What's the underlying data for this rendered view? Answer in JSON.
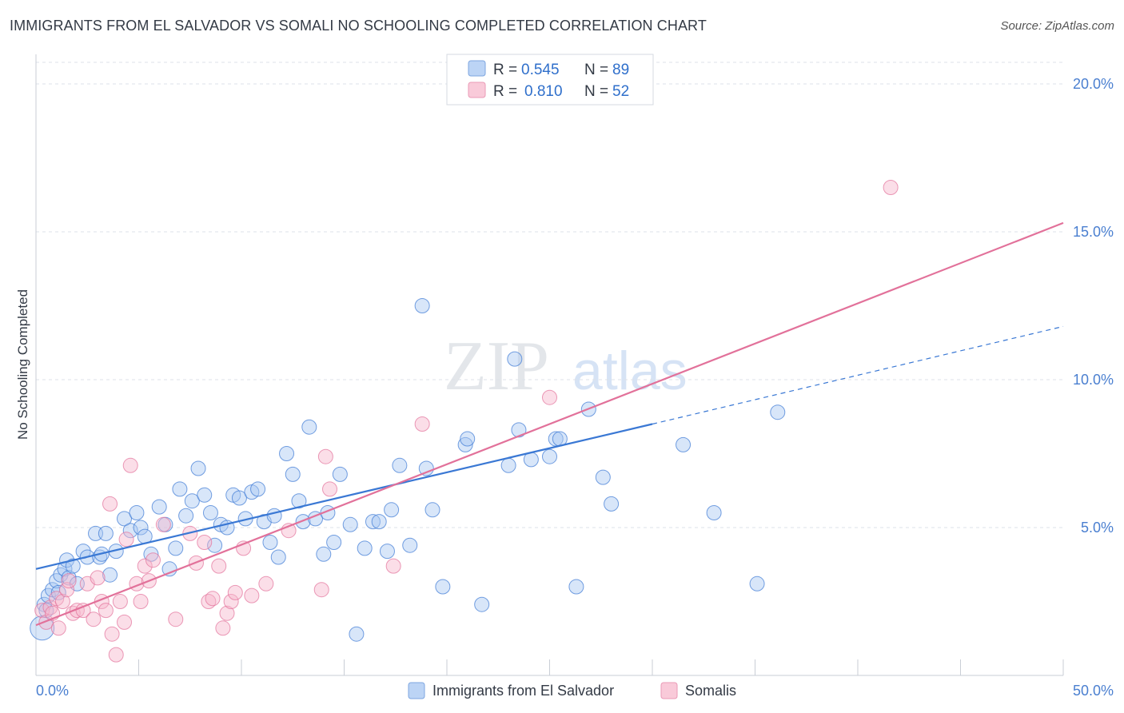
{
  "title": "IMMIGRANTS FROM EL SALVADOR VS SOMALI NO SCHOOLING COMPLETED CORRELATION CHART",
  "source": "Source: ZipAtlas.com",
  "watermark": {
    "zip": "ZIP",
    "atlas": "atlas"
  },
  "colors": {
    "blue": "#3a78d4",
    "blue_fill": "#a9c8f2",
    "pink": "#e2719a",
    "pink_fill": "#f6b6cb",
    "grid": "#dde1e8",
    "tick": "#4a7fd0"
  },
  "legend": {
    "rows": [
      {
        "r_label": "R =",
        "r_value": "0.545",
        "n_label": "N =",
        "n_value": "89"
      },
      {
        "r_label": "R =",
        "r_value": "0.810",
        "n_label": "N =",
        "n_value": "52"
      }
    ]
  },
  "bottom_legend": [
    "Immigrants from El Salvador",
    "Somalis"
  ],
  "chart_data": {
    "type": "scatter",
    "title": "IMMIGRANTS FROM EL SALVADOR VS SOMALI NO SCHOOLING COMPLETED CORRELATION CHART",
    "xlabel": "",
    "ylabel": "No Schooling Completed",
    "xlim": [
      0,
      50
    ],
    "ylim": [
      0,
      21
    ],
    "x_tick_labels": [
      "0.0%",
      "50.0%"
    ],
    "y_ticks": [
      5,
      10,
      15,
      20
    ],
    "y_tick_labels": [
      "5.0%",
      "10.0%",
      "15.0%",
      "20.0%"
    ],
    "grid": true,
    "legend_position": "top-center",
    "series": [
      {
        "name": "Immigrants from El Salvador",
        "r": 0.545,
        "n": 89,
        "trend": {
          "solid": [
            [
              0,
              3.6
            ],
            [
              30,
              8.5
            ]
          ],
          "dashed": [
            [
              30,
              8.5
            ],
            [
              50,
              11.8
            ]
          ]
        },
        "points": [
          [
            0.3,
            1.6
          ],
          [
            0.4,
            2.4
          ],
          [
            0.5,
            2.2
          ],
          [
            0.6,
            2.7
          ],
          [
            0.8,
            2.9
          ],
          [
            1.0,
            3.2
          ],
          [
            1.1,
            2.8
          ],
          [
            1.2,
            3.4
          ],
          [
            1.4,
            3.6
          ],
          [
            1.5,
            3.9
          ],
          [
            1.6,
            3.3
          ],
          [
            1.8,
            3.7
          ],
          [
            2.0,
            3.1
          ],
          [
            2.3,
            4.2
          ],
          [
            2.5,
            4.0
          ],
          [
            2.9,
            4.8
          ],
          [
            3.1,
            4.0
          ],
          [
            3.2,
            4.1
          ],
          [
            3.4,
            4.8
          ],
          [
            3.6,
            3.4
          ],
          [
            3.9,
            4.2
          ],
          [
            4.3,
            5.3
          ],
          [
            4.6,
            4.9
          ],
          [
            4.9,
            5.5
          ],
          [
            5.1,
            5.0
          ],
          [
            5.3,
            4.7
          ],
          [
            5.6,
            4.1
          ],
          [
            6.0,
            5.7
          ],
          [
            6.3,
            5.1
          ],
          [
            6.5,
            3.6
          ],
          [
            6.8,
            4.3
          ],
          [
            7.0,
            6.3
          ],
          [
            7.3,
            5.4
          ],
          [
            7.6,
            5.9
          ],
          [
            7.9,
            7.0
          ],
          [
            8.2,
            6.1
          ],
          [
            8.5,
            5.5
          ],
          [
            8.7,
            4.4
          ],
          [
            9.0,
            5.1
          ],
          [
            9.3,
            5.0
          ],
          [
            9.6,
            6.1
          ],
          [
            9.9,
            6.0
          ],
          [
            10.2,
            5.3
          ],
          [
            10.5,
            6.2
          ],
          [
            10.8,
            6.3
          ],
          [
            11.1,
            5.2
          ],
          [
            11.4,
            4.5
          ],
          [
            11.6,
            5.4
          ],
          [
            11.8,
            4.0
          ],
          [
            12.2,
            7.5
          ],
          [
            12.5,
            6.8
          ],
          [
            12.8,
            5.9
          ],
          [
            13.0,
            5.2
          ],
          [
            13.3,
            8.4
          ],
          [
            13.6,
            5.3
          ],
          [
            14.0,
            4.1
          ],
          [
            14.2,
            5.5
          ],
          [
            14.5,
            4.5
          ],
          [
            14.8,
            6.8
          ],
          [
            15.3,
            5.1
          ],
          [
            15.6,
            1.4
          ],
          [
            16.0,
            4.3
          ],
          [
            16.4,
            5.2
          ],
          [
            16.7,
            5.2
          ],
          [
            17.1,
            4.2
          ],
          [
            17.3,
            5.6
          ],
          [
            17.7,
            7.1
          ],
          [
            18.2,
            4.4
          ],
          [
            18.8,
            12.5
          ],
          [
            19.0,
            7.0
          ],
          [
            19.3,
            5.6
          ],
          [
            19.8,
            3.0
          ],
          [
            20.9,
            7.8
          ],
          [
            21.0,
            8.0
          ],
          [
            21.7,
            2.4
          ],
          [
            23.0,
            7.1
          ],
          [
            23.3,
            10.7
          ],
          [
            23.5,
            8.3
          ],
          [
            24.1,
            7.3
          ],
          [
            25.0,
            7.4
          ],
          [
            25.3,
            8.0
          ],
          [
            25.5,
            8.0
          ],
          [
            26.3,
            3.0
          ],
          [
            26.9,
            9.0
          ],
          [
            27.6,
            6.7
          ],
          [
            28.0,
            5.8
          ],
          [
            31.5,
            7.8
          ],
          [
            33.0,
            5.5
          ],
          [
            35.1,
            3.1
          ],
          [
            36.1,
            8.9
          ]
        ]
      },
      {
        "name": "Somalis",
        "r": 0.81,
        "n": 52,
        "trend": {
          "solid": [
            [
              0,
              1.7
            ],
            [
              50,
              15.3
            ]
          ]
        },
        "points": [
          [
            0.3,
            2.2
          ],
          [
            0.5,
            1.8
          ],
          [
            0.7,
            2.3
          ],
          [
            0.8,
            2.1
          ],
          [
            1.0,
            2.6
          ],
          [
            1.1,
            1.6
          ],
          [
            1.3,
            2.5
          ],
          [
            1.5,
            2.9
          ],
          [
            1.6,
            3.2
          ],
          [
            1.8,
            2.1
          ],
          [
            2.0,
            2.2
          ],
          [
            2.3,
            2.2
          ],
          [
            2.5,
            3.1
          ],
          [
            2.8,
            1.9
          ],
          [
            3.0,
            3.3
          ],
          [
            3.2,
            2.5
          ],
          [
            3.4,
            2.2
          ],
          [
            3.6,
            5.8
          ],
          [
            3.7,
            1.4
          ],
          [
            3.9,
            0.7
          ],
          [
            4.1,
            2.5
          ],
          [
            4.3,
            1.8
          ],
          [
            4.4,
            4.6
          ],
          [
            4.6,
            7.1
          ],
          [
            4.9,
            3.1
          ],
          [
            5.1,
            2.5
          ],
          [
            5.3,
            3.7
          ],
          [
            5.5,
            3.2
          ],
          [
            5.7,
            3.9
          ],
          [
            6.2,
            5.1
          ],
          [
            6.8,
            1.9
          ],
          [
            7.5,
            4.8
          ],
          [
            7.8,
            3.8
          ],
          [
            8.2,
            4.5
          ],
          [
            8.4,
            2.5
          ],
          [
            8.6,
            2.6
          ],
          [
            8.9,
            3.7
          ],
          [
            9.1,
            1.6
          ],
          [
            9.3,
            2.1
          ],
          [
            9.5,
            2.5
          ],
          [
            9.7,
            2.8
          ],
          [
            10.1,
            4.3
          ],
          [
            10.5,
            2.7
          ],
          [
            11.2,
            3.1
          ],
          [
            12.3,
            4.9
          ],
          [
            13.9,
            2.9
          ],
          [
            14.1,
            7.4
          ],
          [
            14.3,
            6.3
          ],
          [
            17.4,
            3.7
          ],
          [
            18.8,
            8.5
          ],
          [
            25.0,
            9.4
          ],
          [
            41.6,
            16.5
          ]
        ]
      }
    ]
  }
}
